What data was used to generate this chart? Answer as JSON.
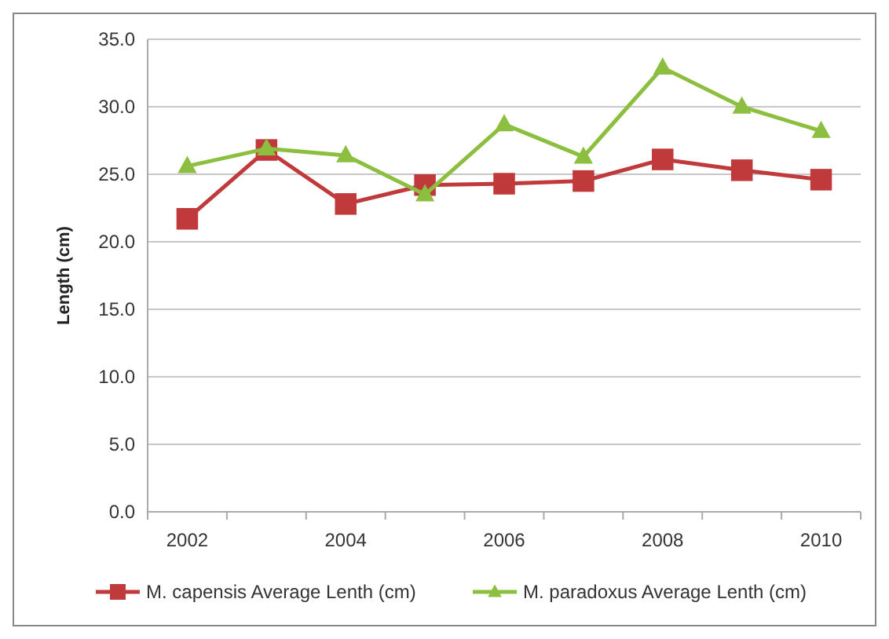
{
  "chart_data": {
    "type": "line",
    "ylabel": "Length (cm)",
    "categories": [
      "2002",
      null,
      "2004",
      null,
      "2006",
      null,
      "2008",
      null,
      "2010"
    ],
    "series": [
      {
        "name": "M. capensis Average Lenth (cm)",
        "color": "#c0393b",
        "marker": "square",
        "values": [
          21.7,
          26.8,
          22.8,
          24.2,
          24.3,
          24.5,
          26.1,
          25.3,
          24.6
        ]
      },
      {
        "name": "M. paradoxus Average Lenth (cm)",
        "color": "#8cbf3f",
        "marker": "triangle",
        "values": [
          25.6,
          26.9,
          26.4,
          23.5,
          28.7,
          26.3,
          32.9,
          30.0,
          28.2
        ]
      }
    ],
    "ylim": [
      0,
      35
    ],
    "yticks": [
      {
        "value": 0,
        "label": "0.0"
      },
      {
        "value": 5,
        "label": "5.0"
      },
      {
        "value": 10,
        "label": "10.0"
      },
      {
        "value": 15,
        "label": "15.0"
      },
      {
        "value": 20,
        "label": "20.0"
      },
      {
        "value": 25,
        "label": "25.0"
      },
      {
        "value": 30,
        "label": "30.0"
      },
      {
        "value": 35,
        "label": "35.0"
      }
    ],
    "grid": "y",
    "legend": "bottom"
  }
}
